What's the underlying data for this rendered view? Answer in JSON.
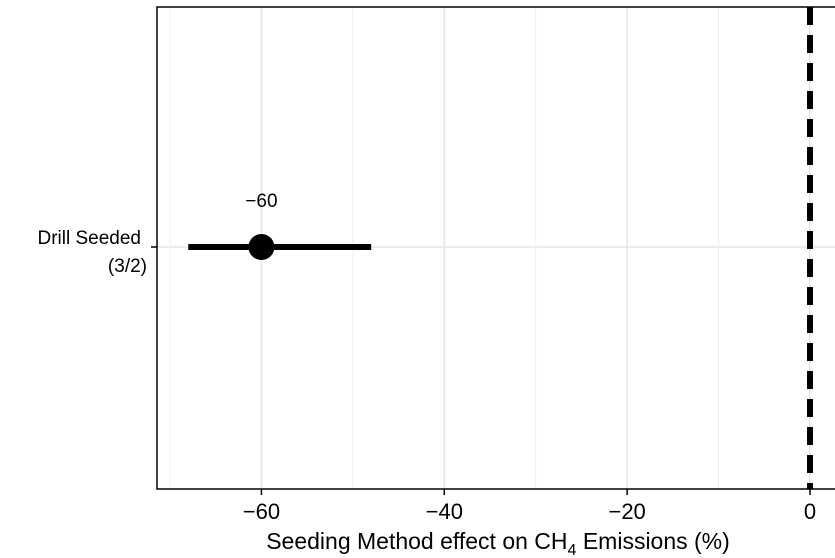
{
  "chart_data": {
    "type": "forest",
    "title": "",
    "xlabel": {
      "prefix": "Seeding Method effect on CH",
      "subscript": "4",
      "suffix": " Emissions (%)"
    },
    "ylabel": "",
    "xlim": [
      -71.5,
      2.5
    ],
    "xticks": [
      -60,
      -40,
      -20,
      0
    ],
    "xtick_labels": [
      "−60",
      "−40",
      "−20",
      "0"
    ],
    "grid": true,
    "reference_line": {
      "x": 0,
      "style": "dashed"
    },
    "series": [
      {
        "category": "Drill Seeded",
        "category_sub": "(3/2)",
        "estimate": -60,
        "ci_low": -68,
        "ci_high": -48,
        "label": "−60"
      }
    ]
  }
}
